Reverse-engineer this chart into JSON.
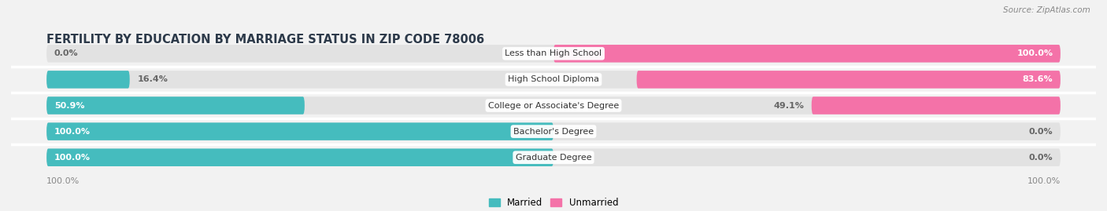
{
  "title": "FERTILITY BY EDUCATION BY MARRIAGE STATUS IN ZIP CODE 78006",
  "source": "Source: ZipAtlas.com",
  "categories": [
    "Less than High School",
    "High School Diploma",
    "College or Associate's Degree",
    "Bachelor's Degree",
    "Graduate Degree"
  ],
  "married": [
    0.0,
    16.4,
    50.9,
    100.0,
    100.0
  ],
  "unmarried": [
    100.0,
    83.6,
    49.1,
    0.0,
    0.0
  ],
  "married_color": "#45BCBE",
  "unmarried_color": "#F472A8",
  "bg_color": "#f2f2f2",
  "bar_bg_color": "#e2e2e2",
  "white_color": "#ffffff",
  "title_fontsize": 10.5,
  "source_fontsize": 7.5,
  "label_fontsize": 8,
  "pct_fontsize": 8,
  "legend_fontsize": 8.5,
  "bar_height": 0.68,
  "xlim_left": -107,
  "xlim_right": 107,
  "rounding": 5
}
